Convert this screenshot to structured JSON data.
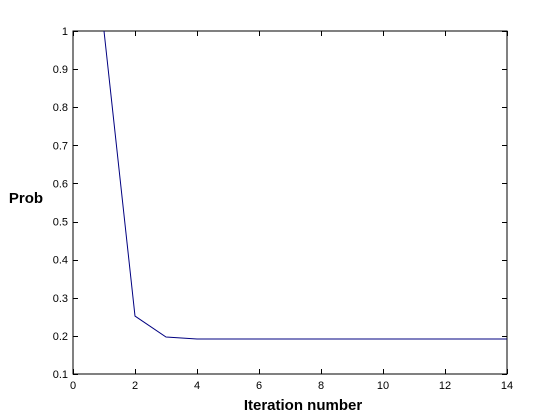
{
  "chart_data": {
    "type": "line",
    "title": "",
    "xlabel": "Iteration number",
    "ylabel": "Prob",
    "xlim": [
      0,
      14
    ],
    "ylim": [
      0.1,
      1
    ],
    "x_ticks": [
      0,
      2,
      4,
      6,
      8,
      10,
      12,
      14
    ],
    "y_ticks": [
      0.1,
      0.2,
      0.3,
      0.4,
      0.5,
      0.6,
      0.7,
      0.8,
      0.9,
      1
    ],
    "grid": false,
    "series": [
      {
        "color": "#000080",
        "x": [
          1,
          2,
          3,
          4,
          5,
          6,
          7,
          8,
          9,
          10,
          11,
          12,
          13,
          14
        ],
        "y": [
          1.0,
          0.252,
          0.197,
          0.192,
          0.192,
          0.192,
          0.192,
          0.192,
          0.192,
          0.192,
          0.192,
          0.192,
          0.192,
          0.192
        ]
      }
    ]
  }
}
